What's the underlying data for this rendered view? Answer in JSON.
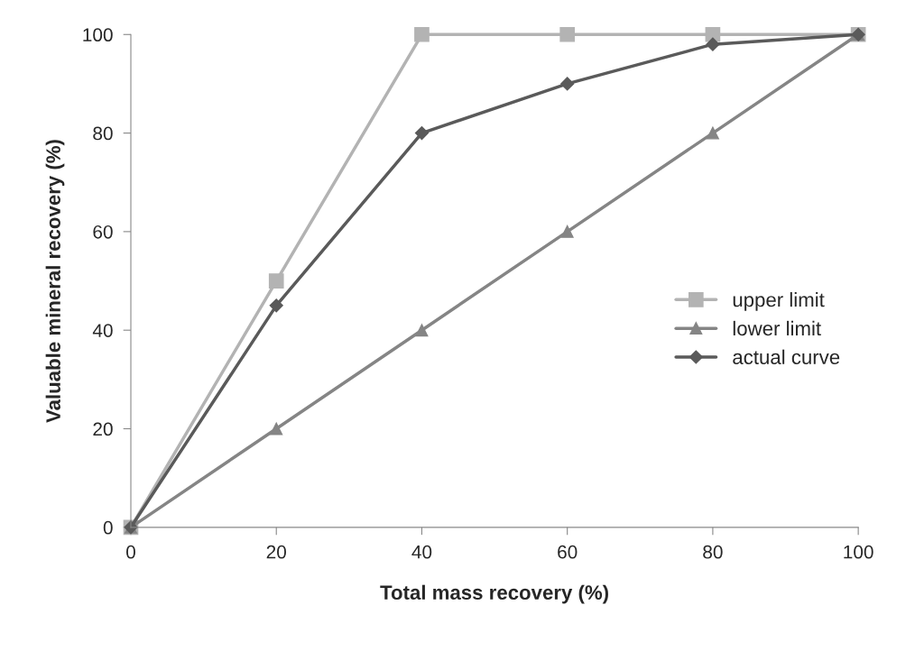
{
  "chart_data": {
    "type": "line",
    "xlabel": "Total mass recovery (%)",
    "ylabel": "Valuable mineral recovery (%)",
    "x": [
      0,
      20,
      40,
      60,
      80,
      100
    ],
    "series": [
      {
        "name": "upper limit",
        "color": "#b3b3b3",
        "marker": "square",
        "values": [
          0,
          50,
          100,
          100,
          100,
          100
        ]
      },
      {
        "name": "lower limit",
        "color": "#858585",
        "marker": "triangle",
        "values": [
          0,
          20,
          40,
          60,
          80,
          100
        ]
      },
      {
        "name": "actual curve",
        "color": "#5a5a5a",
        "marker": "diamond",
        "values": [
          0,
          45,
          80,
          90,
          98,
          100
        ]
      }
    ],
    "xlim": [
      0,
      100
    ],
    "ylim": [
      0,
      100
    ],
    "xticks": [
      0,
      20,
      40,
      60,
      80,
      100
    ],
    "yticks": [
      0,
      20,
      40,
      60,
      80,
      100
    ],
    "grid": false,
    "legend": "right",
    "line_style": "solid"
  }
}
